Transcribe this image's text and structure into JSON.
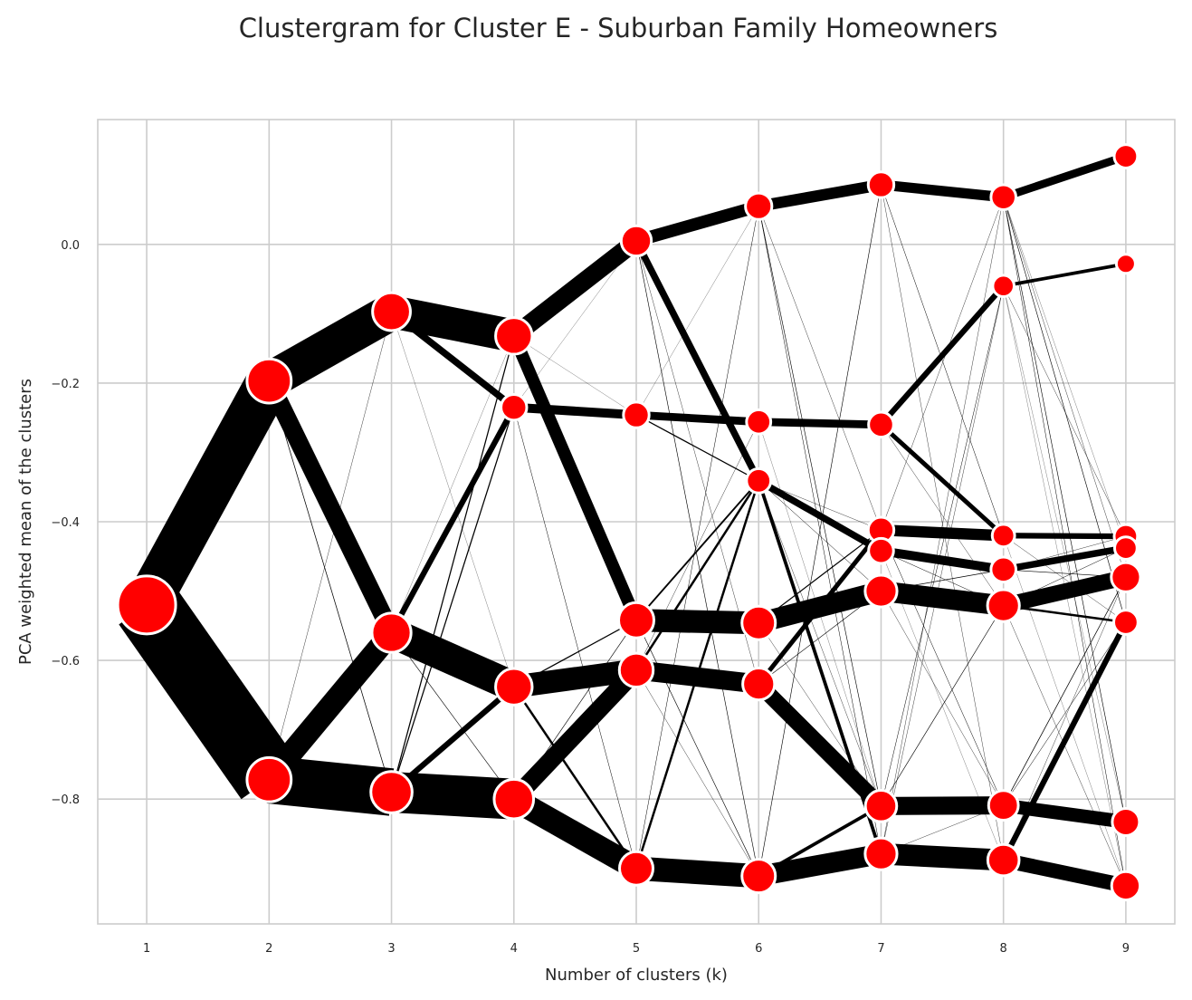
{
  "chart_data": {
    "type": "line",
    "title": "Clustergram for Cluster E - Suburban Family Homeowners",
    "xlabel": "Number of clusters (k)",
    "ylabel": "PCA weighted mean of the clusters",
    "xlim": [
      0.6,
      9.4
    ],
    "ylim": [
      -0.98,
      0.18
    ],
    "x_ticks": [
      1,
      2,
      3,
      4,
      5,
      6,
      7,
      8,
      9
    ],
    "y_ticks": [
      -0.8,
      -0.6,
      -0.4,
      -0.2,
      0.0
    ],
    "y_tick_labels": [
      "−0.8",
      "−0.6",
      "−0.4",
      "−0.2",
      "0.0"
    ],
    "grid": true,
    "colors": {
      "edge": "#000000",
      "node_fill": "#ff0000",
      "node_outline": "#ffffff",
      "grid": "#cccccc",
      "frame": "#cccccc"
    },
    "nodes": [
      {
        "id": "1a",
        "k": 1,
        "mean": -0.52,
        "size": 1.0
      },
      {
        "id": "2a",
        "k": 2,
        "mean": -0.197,
        "size": 0.5
      },
      {
        "id": "2b",
        "k": 2,
        "mean": -0.772,
        "size": 0.5
      },
      {
        "id": "3a",
        "k": 3,
        "mean": -0.097,
        "size": 0.33
      },
      {
        "id": "3b",
        "k": 3,
        "mean": -0.56,
        "size": 0.36
      },
      {
        "id": "3c",
        "k": 3,
        "mean": -0.79,
        "size": 0.42
      },
      {
        "id": "4a",
        "k": 4,
        "mean": -0.132,
        "size": 0.3
      },
      {
        "id": "4b",
        "k": 4,
        "mean": -0.235,
        "size": 0.1
      },
      {
        "id": "4c",
        "k": 4,
        "mean": -0.638,
        "size": 0.3
      },
      {
        "id": "4d",
        "k": 4,
        "mean": -0.8,
        "size": 0.37
      },
      {
        "id": "5a",
        "k": 5,
        "mean": 0.005,
        "size": 0.17
      },
      {
        "id": "5b",
        "k": 5,
        "mean": -0.246,
        "size": 0.1
      },
      {
        "id": "5c",
        "k": 5,
        "mean": -0.542,
        "size": 0.27
      },
      {
        "id": "5d",
        "k": 5,
        "mean": -0.614,
        "size": 0.24
      },
      {
        "id": "5e",
        "k": 5,
        "mean": -0.9,
        "size": 0.23
      },
      {
        "id": "6a",
        "k": 6,
        "mean": 0.055,
        "size": 0.11
      },
      {
        "id": "6b",
        "k": 6,
        "mean": -0.256,
        "size": 0.08
      },
      {
        "id": "6c",
        "k": 6,
        "mean": -0.341,
        "size": 0.08
      },
      {
        "id": "6d",
        "k": 6,
        "mean": -0.546,
        "size": 0.23
      },
      {
        "id": "6e",
        "k": 6,
        "mean": -0.634,
        "size": 0.2
      },
      {
        "id": "6f",
        "k": 6,
        "mean": -0.911,
        "size": 0.23
      },
      {
        "id": "7a",
        "k": 7,
        "mean": 0.086,
        "size": 0.1
      },
      {
        "id": "7b",
        "k": 7,
        "mean": -0.26,
        "size": 0.09
      },
      {
        "id": "7c",
        "k": 7,
        "mean": -0.412,
        "size": 0.1
      },
      {
        "id": "7d",
        "k": 7,
        "mean": -0.442,
        "size": 0.09
      },
      {
        "id": "7e",
        "k": 7,
        "mean": -0.5,
        "size": 0.2
      },
      {
        "id": "7f",
        "k": 7,
        "mean": -0.81,
        "size": 0.19
      },
      {
        "id": "7g",
        "k": 7,
        "mean": -0.879,
        "size": 0.2
      },
      {
        "id": "8a",
        "k": 8,
        "mean": 0.068,
        "size": 0.09
      },
      {
        "id": "8b",
        "k": 8,
        "mean": -0.06,
        "size": 0.05
      },
      {
        "id": "8c",
        "k": 8,
        "mean": -0.42,
        "size": 0.06
      },
      {
        "id": "8d",
        "k": 8,
        "mean": -0.469,
        "size": 0.09
      },
      {
        "id": "8e",
        "k": 8,
        "mean": -0.521,
        "size": 0.2
      },
      {
        "id": "8f",
        "k": 8,
        "mean": -0.809,
        "size": 0.16
      },
      {
        "id": "8g",
        "k": 8,
        "mean": -0.888,
        "size": 0.19
      },
      {
        "id": "9a",
        "k": 9,
        "mean": 0.127,
        "size": 0.07
      },
      {
        "id": "9b",
        "k": 9,
        "mean": -0.028,
        "size": 0.03
      },
      {
        "id": "9c",
        "k": 9,
        "mean": -0.421,
        "size": 0.07
      },
      {
        "id": "9d",
        "k": 9,
        "mean": -0.438,
        "size": 0.06
      },
      {
        "id": "9e",
        "k": 9,
        "mean": -0.48,
        "size": 0.15
      },
      {
        "id": "9f",
        "k": 9,
        "mean": -0.545,
        "size": 0.08
      },
      {
        "id": "9g",
        "k": 9,
        "mean": -0.833,
        "size": 0.12
      },
      {
        "id": "9h",
        "k": 9,
        "mean": -0.925,
        "size": 0.14
      }
    ],
    "edges": [
      [
        "1a",
        "2a",
        0.4
      ],
      [
        "1a",
        "2b",
        0.6
      ],
      [
        "2a",
        "3a",
        0.33
      ],
      [
        "2a",
        "3b",
        0.16
      ],
      [
        "2a",
        "3c",
        0.006
      ],
      [
        "2b",
        "3b",
        0.2
      ],
      [
        "2b",
        "3c",
        0.42
      ],
      [
        "2b",
        "3a",
        0.003
      ],
      [
        "3a",
        "4a",
        0.29
      ],
      [
        "3a",
        "4b",
        0.06
      ],
      [
        "3a",
        "4c",
        0.002
      ],
      [
        "3b",
        "4b",
        0.05
      ],
      [
        "3b",
        "4c",
        0.27
      ],
      [
        "3b",
        "4d",
        0.005
      ],
      [
        "3b",
        "4a",
        0.002
      ],
      [
        "3c",
        "4d",
        0.36
      ],
      [
        "3c",
        "4c",
        0.05
      ],
      [
        "3c",
        "4a",
        0.01
      ],
      [
        "3c",
        "4b",
        0.01
      ],
      [
        "4a",
        "5a",
        0.16
      ],
      [
        "4a",
        "5c",
        0.11
      ],
      [
        "4a",
        "5b",
        0.002
      ],
      [
        "4b",
        "5b",
        0.08
      ],
      [
        "4b",
        "5e",
        0.004
      ],
      [
        "4b",
        "5a",
        0.002
      ],
      [
        "4c",
        "5d",
        0.2
      ],
      [
        "4c",
        "5c",
        0.01
      ],
      [
        "4c",
        "5e",
        0.02
      ],
      [
        "4d",
        "5e",
        0.21
      ],
      [
        "4d",
        "5d",
        0.16
      ],
      [
        "4d",
        "5c",
        0.005
      ],
      [
        "5a",
        "6a",
        0.11
      ],
      [
        "5a",
        "6c",
        0.06
      ],
      [
        "5a",
        "6e",
        0.003
      ],
      [
        "5a",
        "6f",
        0.005
      ],
      [
        "5b",
        "6b",
        0.07
      ],
      [
        "5b",
        "6a",
        0.002
      ],
      [
        "5b",
        "6c",
        0.01
      ],
      [
        "5c",
        "6d",
        0.2
      ],
      [
        "5c",
        "6c",
        0.015
      ],
      [
        "5c",
        "6f",
        0.005
      ],
      [
        "5d",
        "6e",
        0.17
      ],
      [
        "5d",
        "6c",
        0.02
      ],
      [
        "5d",
        "6b",
        0.003
      ],
      [
        "5d",
        "6f",
        0.003
      ],
      [
        "5e",
        "6f",
        0.21
      ],
      [
        "5e",
        "6c",
        0.02
      ],
      [
        "5e",
        "6a",
        0.004
      ],
      [
        "6a",
        "7a",
        0.1
      ],
      [
        "6a",
        "7f",
        0.005
      ],
      [
        "6a",
        "7g",
        0.004
      ],
      [
        "6a",
        "7c",
        0.003
      ],
      [
        "6b",
        "7b",
        0.07
      ],
      [
        "6b",
        "7f",
        0.002
      ],
      [
        "6c",
        "7d",
        0.06
      ],
      [
        "6c",
        "7g",
        0.03
      ],
      [
        "6c",
        "7e",
        0.004
      ],
      [
        "6c",
        "7c",
        0.003
      ],
      [
        "6c",
        "7f",
        0.003
      ],
      [
        "6d",
        "7e",
        0.18
      ],
      [
        "6d",
        "7c",
        0.01
      ],
      [
        "6d",
        "7f",
        0.003
      ],
      [
        "6e",
        "7f",
        0.14
      ],
      [
        "6e",
        "7c",
        0.04
      ],
      [
        "6e",
        "7e",
        0.005
      ],
      [
        "6f",
        "7g",
        0.18
      ],
      [
        "6f",
        "7f",
        0.03
      ],
      [
        "6f",
        "7a",
        0.005
      ],
      [
        "7a",
        "8a",
        0.09
      ],
      [
        "7a",
        "8c",
        0.004
      ],
      [
        "7a",
        "8g",
        0.003
      ],
      [
        "7b",
        "8b",
        0.05
      ],
      [
        "7b",
        "8c",
        0.04
      ],
      [
        "7b",
        "8e",
        0.003
      ],
      [
        "7c",
        "8c",
        0.1
      ],
      [
        "7c",
        "8f",
        0.004
      ],
      [
        "7c",
        "8a",
        0.003
      ],
      [
        "7d",
        "8d",
        0.08
      ],
      [
        "7d",
        "8e",
        0.004
      ],
      [
        "7d",
        "8g",
        0.002
      ],
      [
        "7e",
        "8e",
        0.18
      ],
      [
        "7e",
        "8d",
        0.006
      ],
      [
        "7e",
        "8f",
        0.003
      ],
      [
        "7f",
        "8f",
        0.16
      ],
      [
        "7f",
        "8b",
        0.004
      ],
      [
        "7f",
        "8e",
        0.005
      ],
      [
        "7g",
        "8g",
        0.19
      ],
      [
        "7g",
        "8a",
        0.003
      ],
      [
        "7g",
        "8b",
        0.003
      ],
      [
        "7g",
        "8f",
        0.003
      ],
      [
        "8a",
        "9a",
        0.07
      ],
      [
        "8a",
        "9f",
        0.005
      ],
      [
        "8a",
        "9g",
        0.005
      ],
      [
        "8a",
        "9h",
        0.004
      ],
      [
        "8a",
        "9e",
        0.003
      ],
      [
        "8a",
        "9d",
        0.002
      ],
      [
        "8b",
        "9b",
        0.03
      ],
      [
        "8b",
        "9c",
        0.003
      ],
      [
        "8b",
        "9g",
        0.002
      ],
      [
        "8b",
        "9h",
        0.002
      ],
      [
        "8c",
        "9c",
        0.05
      ],
      [
        "8c",
        "9f",
        0.003
      ],
      [
        "8c",
        "9h",
        0.002
      ],
      [
        "8d",
        "9d",
        0.06
      ],
      [
        "8d",
        "9e",
        0.005
      ],
      [
        "8d",
        "9c",
        0.003
      ],
      [
        "8e",
        "9e",
        0.14
      ],
      [
        "8e",
        "9f",
        0.02
      ],
      [
        "8e",
        "9d",
        0.004
      ],
      [
        "8e",
        "9h",
        0.003
      ],
      [
        "8f",
        "9g",
        0.12
      ],
      [
        "8f",
        "9e",
        0.006
      ],
      [
        "8f",
        "9f",
        0.004
      ],
      [
        "8g",
        "9h",
        0.13
      ],
      [
        "8g",
        "9f",
        0.05
      ],
      [
        "8g",
        "9e",
        0.003
      ]
    ]
  }
}
